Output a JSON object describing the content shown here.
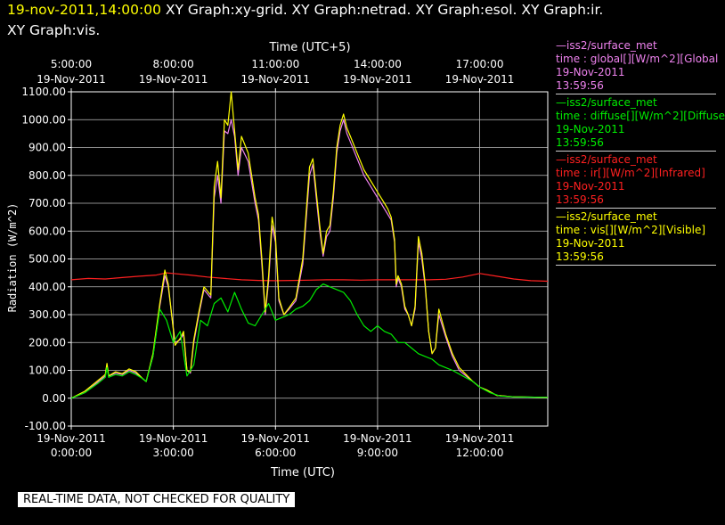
{
  "header": {
    "timestamp": "19-nov-2011,14:00:00",
    "line1": " XY Graph:xy-grid.  XY Graph:netrad.  XY Graph:esol.  XY Graph:ir.",
    "line2": "XY Graph:vis."
  },
  "notice": "REAL-TIME DATA, NOT CHECKED FOR QUALITY",
  "legend": [
    {
      "source": "—iss2/surface_met",
      "field": "time : global[][W/m^2][Global",
      "date": "19-Nov-2011",
      "time": "13:59:56",
      "color": "#ee82ee"
    },
    {
      "source": "—iss2/surface_met",
      "field": "time : diffuse[][W/m^2][Diffuse",
      "date": "19-Nov-2011",
      "time": "13:59:56",
      "color": "#00ee00"
    },
    {
      "source": "—iss2/surface_met",
      "field": "time : ir[][W/m^2][Infrared]",
      "date": "19-Nov-2011",
      "time": "13:59:56",
      "color": "#ff2020"
    },
    {
      "source": "—iss2/surface_met",
      "field": "time : vis[][W/m^2][Visible]",
      "date": "19-Nov-2011",
      "time": "13:59:56",
      "color": "#ffff00"
    }
  ],
  "chart_data": {
    "type": "line",
    "xlabel": "Time (UTC)",
    "x2label": "Time (UTC+5)",
    "ylabel": "Radiation (W/m^2)",
    "xlim": [
      0,
      14.0
    ],
    "ylim": [
      -100,
      1100
    ],
    "grid": true,
    "xticks": [
      {
        "x": 0,
        "date": "19-Nov-2011",
        "time": "0:00:00"
      },
      {
        "x": 3,
        "date": "19-Nov-2011",
        "time": "3:00:00"
      },
      {
        "x": 6,
        "date": "19-Nov-2011",
        "time": "6:00:00"
      },
      {
        "x": 9,
        "date": "19-Nov-2011",
        "time": "9:00:00"
      },
      {
        "x": 12,
        "date": "19-Nov-2011",
        "time": "12:00:00"
      }
    ],
    "x2ticks": [
      {
        "x": 0,
        "time": "5:00:00",
        "date": "19-Nov-2011"
      },
      {
        "x": 3,
        "time": "8:00:00",
        "date": "19-Nov-2011"
      },
      {
        "x": 6,
        "time": "11:00:00",
        "date": "19-Nov-2011"
      },
      {
        "x": 9,
        "time": "14:00:00",
        "date": "19-Nov-2011"
      },
      {
        "x": 12,
        "time": "17:00:00",
        "date": "19-Nov-2011"
      }
    ],
    "yticks": [
      "-100.00",
      "0.00",
      "100.00",
      "200.00",
      "300.00",
      "400.00",
      "500.00",
      "600.00",
      "700.00",
      "800.00",
      "900.00",
      "1000.00",
      "1100.00"
    ],
    "series": [
      {
        "name": "ir",
        "color": "#ff2020",
        "x": [
          0,
          0.5,
          1,
          1.5,
          2,
          2.5,
          2.8,
          3,
          3.5,
          4,
          4.5,
          5,
          5.5,
          6,
          6.5,
          7,
          7.5,
          8,
          8.5,
          9,
          9.5,
          10,
          10.5,
          11,
          11.5,
          12,
          12.5,
          13,
          13.5,
          14
        ],
        "y": [
          425,
          430,
          428,
          433,
          438,
          442,
          450,
          448,
          442,
          435,
          430,
          425,
          423,
          422,
          423,
          424,
          425,
          425,
          424,
          425,
          425,
          425,
          425,
          427,
          435,
          448,
          438,
          428,
          422,
          420
        ]
      },
      {
        "name": "global",
        "color": "#ee82ee",
        "x": [
          0,
          0.4,
          0.8,
          1,
          1.05,
          1.1,
          1.3,
          1.5,
          1.7,
          1.9,
          2.1,
          2.2,
          2.4,
          2.6,
          2.75,
          2.85,
          2.95,
          3.05,
          3.2,
          3.3,
          3.4,
          3.5,
          3.6,
          3.75,
          3.9,
          4.1,
          4.2,
          4.3,
          4.4,
          4.5,
          4.6,
          4.7,
          4.8,
          4.9,
          5.0,
          5.2,
          5.4,
          5.5,
          5.6,
          5.7,
          5.8,
          5.9,
          6.0,
          6.1,
          6.25,
          6.4,
          6.6,
          6.8,
          7.0,
          7.1,
          7.2,
          7.3,
          7.4,
          7.5,
          7.6,
          7.7,
          7.8,
          7.9,
          8.0,
          8.1,
          8.2,
          8.4,
          8.6,
          8.8,
          9.0,
          9.1,
          9.2,
          9.3,
          9.4,
          9.5,
          9.55,
          9.6,
          9.7,
          9.8,
          9.9,
          10.0,
          10.1,
          10.2,
          10.3,
          10.4,
          10.5,
          10.6,
          10.7,
          10.8,
          11.0,
          11.2,
          11.4,
          11.6,
          11.8,
          12.0,
          12.2,
          12.5,
          13.0,
          14.0
        ],
        "y": [
          0,
          20,
          60,
          80,
          120,
          80,
          90,
          85,
          100,
          90,
          70,
          60,
          150,
          330,
          440,
          400,
          300,
          200,
          210,
          230,
          100,
          90,
          200,
          300,
          390,
          360,
          720,
          800,
          700,
          960,
          950,
          1000,
          940,
          800,
          900,
          850,
          700,
          640,
          480,
          300,
          420,
          620,
          560,
          350,
          300,
          320,
          350,
          480,
          800,
          840,
          720,
          600,
          510,
          580,
          600,
          720,
          880,
          960,
          1000,
          950,
          920,
          860,
          800,
          760,
          720,
          700,
          680,
          660,
          640,
          560,
          400,
          430,
          400,
          320,
          300,
          260,
          320,
          560,
          500,
          400,
          240,
          160,
          180,
          300,
          220,
          150,
          100,
          80,
          60,
          40,
          30,
          10,
          5,
          3
        ]
      },
      {
        "name": "vis",
        "color": "#ffff00",
        "x": [
          0,
          0.4,
          0.8,
          1,
          1.05,
          1.1,
          1.3,
          1.5,
          1.7,
          1.9,
          2.1,
          2.2,
          2.4,
          2.6,
          2.75,
          2.85,
          2.95,
          3.05,
          3.2,
          3.3,
          3.4,
          3.5,
          3.6,
          3.75,
          3.9,
          4.1,
          4.2,
          4.3,
          4.4,
          4.5,
          4.6,
          4.7,
          4.8,
          4.9,
          5.0,
          5.2,
          5.4,
          5.5,
          5.6,
          5.7,
          5.8,
          5.9,
          6.0,
          6.1,
          6.25,
          6.4,
          6.6,
          6.8,
          7.0,
          7.1,
          7.2,
          7.3,
          7.4,
          7.5,
          7.6,
          7.7,
          7.8,
          7.9,
          8.0,
          8.1,
          8.2,
          8.4,
          8.6,
          8.8,
          9.0,
          9.1,
          9.2,
          9.3,
          9.4,
          9.5,
          9.55,
          9.6,
          9.7,
          9.8,
          9.9,
          10.0,
          10.1,
          10.2,
          10.3,
          10.4,
          10.5,
          10.6,
          10.7,
          10.8,
          11.0,
          11.2,
          11.4,
          11.6,
          11.8,
          12.0,
          12.2,
          12.5,
          13.0,
          14.0
        ],
        "y": [
          0,
          25,
          65,
          85,
          125,
          80,
          95,
          88,
          105,
          95,
          70,
          60,
          160,
          340,
          460,
          410,
          300,
          190,
          215,
          240,
          100,
          95,
          210,
          310,
          400,
          370,
          760,
          850,
          720,
          1000,
          980,
          1100,
          960,
          820,
          940,
          880,
          720,
          660,
          500,
          310,
          440,
          650,
          580,
          360,
          300,
          325,
          360,
          500,
          830,
          860,
          740,
          620,
          520,
          600,
          620,
          740,
          900,
          980,
          1020,
          970,
          940,
          880,
          820,
          780,
          740,
          720,
          700,
          680,
          650,
          570,
          410,
          440,
          410,
          330,
          300,
          260,
          330,
          580,
          520,
          410,
          240,
          160,
          180,
          320,
          230,
          160,
          110,
          85,
          60,
          40,
          30,
          10,
          5,
          3
        ]
      },
      {
        "name": "diffuse",
        "color": "#00ee00",
        "x": [
          0,
          0.4,
          0.8,
          1,
          1.05,
          1.1,
          1.3,
          1.5,
          1.7,
          1.9,
          2.1,
          2.2,
          2.4,
          2.6,
          2.8,
          3.0,
          3.2,
          3.4,
          3.6,
          3.8,
          4.0,
          4.2,
          4.4,
          4.6,
          4.8,
          5.0,
          5.2,
          5.4,
          5.6,
          5.8,
          6.0,
          6.2,
          6.4,
          6.6,
          6.8,
          7.0,
          7.2,
          7.4,
          7.6,
          7.8,
          8.0,
          8.2,
          8.4,
          8.6,
          8.8,
          9.0,
          9.2,
          9.4,
          9.6,
          9.8,
          10.0,
          10.2,
          10.4,
          10.6,
          10.8,
          11.0,
          11.2,
          11.5,
          11.8,
          12.0,
          12.3,
          12.6,
          13.0,
          14.0
        ],
        "y": [
          0,
          20,
          55,
          75,
          110,
          75,
          85,
          80,
          95,
          85,
          70,
          60,
          150,
          320,
          280,
          200,
          240,
          80,
          120,
          280,
          260,
          340,
          360,
          310,
          380,
          320,
          270,
          260,
          300,
          340,
          280,
          290,
          300,
          320,
          330,
          350,
          390,
          410,
          400,
          390,
          380,
          350,
          300,
          260,
          240,
          260,
          240,
          230,
          200,
          200,
          180,
          160,
          150,
          140,
          120,
          110,
          100,
          80,
          60,
          40,
          20,
          8,
          5,
          3
        ]
      }
    ]
  }
}
